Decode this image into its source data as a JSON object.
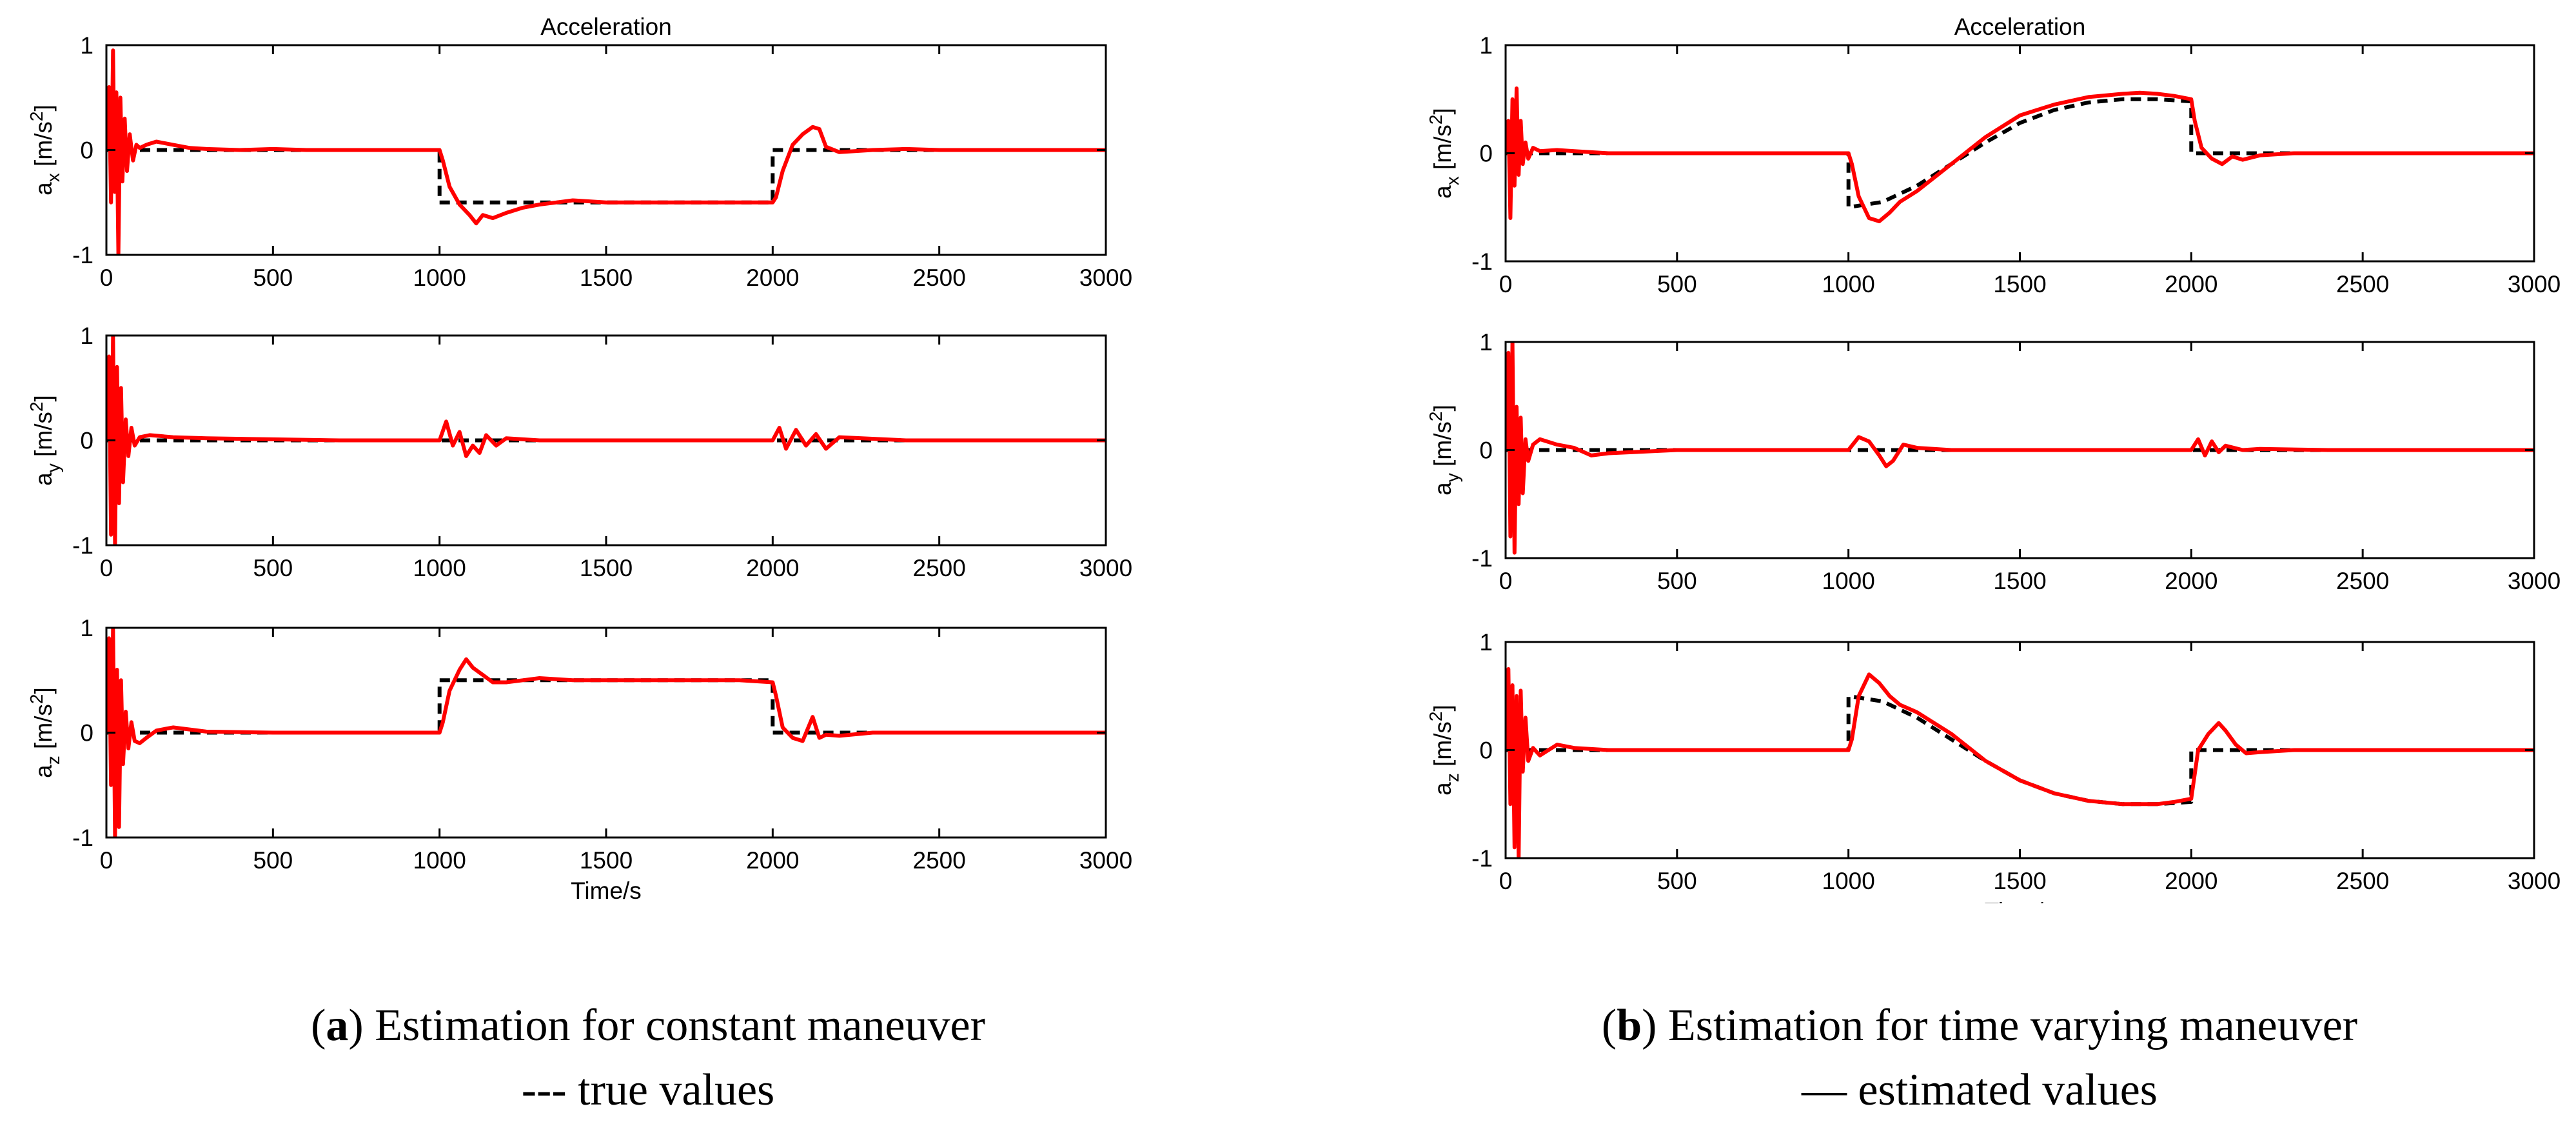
{
  "captions": {
    "a": {
      "label": "a",
      "text": "Estimation for constant maneuver"
    },
    "b": {
      "label": "b",
      "text": "Estimation for time varying maneuver"
    },
    "legend_true": "--- true values",
    "legend_estimated": "— estimated values"
  },
  "colors": {
    "true": "#000000",
    "estimated": "#ff0000",
    "axes": "#000000",
    "background": "#ffffff"
  },
  "chart_data": [
    {
      "panel": "a",
      "type": "line",
      "title": "Acceleration",
      "xlabel": "Time/s",
      "xlim": [
        0,
        3000
      ],
      "xticks": [
        0,
        500,
        1000,
        1500,
        2000,
        2500,
        3000
      ],
      "subplots": [
        {
          "ylabel_main": "a",
          "ylabel_sub": "x",
          "ylabel_unit": "[m/s",
          "ylabel_sup": "2",
          "ylabel_close": "]",
          "ylim": [
            -1,
            1
          ],
          "yticks": [
            -1,
            0,
            1
          ],
          "series": [
            {
              "name": "true values",
              "style": "dashed",
              "x": [
                0,
                1000,
                1000,
                2000,
                2000,
                3000
              ],
              "y": [
                0,
                0,
                -0.5,
                -0.5,
                0,
                0
              ]
            },
            {
              "name": "estimated values",
              "style": "solid",
              "x": [
                0,
                8,
                14,
                20,
                25,
                30,
                36,
                42,
                48,
                55,
                62,
                70,
                80,
                90,
                100,
                120,
                150,
                200,
                250,
                300,
                400,
                500,
                600,
                700,
                800,
                900,
                1000,
                1010,
                1030,
                1060,
                1090,
                1110,
                1130,
                1160,
                1200,
                1250,
                1300,
                1350,
                1400,
                1500,
                1600,
                1700,
                1800,
                1900,
                2000,
                2010,
                2030,
                2060,
                2090,
                2120,
                2140,
                2160,
                2200,
                2300,
                2400,
                2500,
                2600,
                2800,
                3000
              ],
              "y": [
                0,
                0.6,
                -0.5,
                0.95,
                -0.4,
                0.55,
                -1.0,
                0.5,
                -0.3,
                0.3,
                -0.2,
                0.15,
                -0.1,
                0.05,
                0.02,
                0.05,
                0.08,
                0.05,
                0.02,
                0.01,
                0,
                0.01,
                0,
                0,
                0,
                0,
                0,
                -0.1,
                -0.35,
                -0.52,
                -0.62,
                -0.7,
                -0.62,
                -0.65,
                -0.6,
                -0.55,
                -0.52,
                -0.5,
                -0.48,
                -0.5,
                -0.5,
                -0.5,
                -0.5,
                -0.5,
                -0.5,
                -0.45,
                -0.2,
                0.05,
                0.15,
                0.22,
                0.2,
                0.03,
                -0.02,
                0,
                0.01,
                0,
                0,
                0,
                0
              ]
            }
          ]
        },
        {
          "ylabel_main": "a",
          "ylabel_sub": "y",
          "ylabel_unit": "[m/s",
          "ylabel_sup": "2",
          "ylabel_close": "]",
          "ylim": [
            -1,
            1
          ],
          "yticks": [
            -1,
            0,
            1
          ],
          "series": [
            {
              "name": "true values",
              "style": "dashed",
              "x": [
                0,
                3000
              ],
              "y": [
                0,
                0
              ]
            },
            {
              "name": "estimated values",
              "style": "solid",
              "x": [
                0,
                8,
                14,
                20,
                26,
                32,
                38,
                44,
                50,
                58,
                66,
                75,
                85,
                100,
                130,
                200,
                300,
                500,
                700,
                900,
                1000,
                1020,
                1040,
                1060,
                1080,
                1100,
                1120,
                1140,
                1170,
                1200,
                1300,
                1500,
                1700,
                1900,
                2000,
                2020,
                2040,
                2070,
                2100,
                2130,
                2160,
                2200,
                2400,
                2600,
                3000
              ],
              "y": [
                0,
                0.8,
                -0.9,
                1.0,
                -1.0,
                0.7,
                -0.6,
                0.5,
                -0.4,
                0.2,
                -0.15,
                0.12,
                -0.05,
                0.03,
                0.05,
                0.03,
                0.02,
                0.01,
                0,
                0,
                0,
                0.18,
                -0.05,
                0.08,
                -0.15,
                -0.05,
                -0.12,
                0.05,
                -0.05,
                0.02,
                0,
                0,
                0,
                0,
                0,
                0.12,
                -0.08,
                0.1,
                -0.05,
                0.06,
                -0.08,
                0.03,
                0,
                0,
                0
              ]
            }
          ]
        },
        {
          "ylabel_main": "a",
          "ylabel_sub": "z",
          "ylabel_unit": "[m/s",
          "ylabel_sup": "2",
          "ylabel_close": "]",
          "ylim": [
            -1,
            1
          ],
          "yticks": [
            -1,
            0,
            1
          ],
          "series": [
            {
              "name": "true values",
              "style": "dashed",
              "x": [
                0,
                1000,
                1000,
                2000,
                2000,
                3000
              ],
              "y": [
                0,
                0,
                0.5,
                0.5,
                0,
                0
              ]
            },
            {
              "name": "estimated values",
              "style": "solid",
              "x": [
                0,
                8,
                14,
                20,
                26,
                32,
                38,
                44,
                50,
                58,
                66,
                75,
                85,
                100,
                120,
                150,
                200,
                250,
                300,
                500,
                700,
                900,
                1000,
                1010,
                1030,
                1060,
                1080,
                1100,
                1130,
                1160,
                1200,
                1250,
                1300,
                1400,
                1500,
                1700,
                1900,
                2000,
                2010,
                2030,
                2060,
                2090,
                2120,
                2140,
                2160,
                2200,
                2300,
                2500,
                3000
              ],
              "y": [
                0,
                0.9,
                -0.5,
                1.0,
                -1.0,
                0.6,
                -0.9,
                0.5,
                -0.3,
                0.2,
                -0.15,
                0.1,
                -0.08,
                -0.1,
                -0.05,
                0.02,
                0.05,
                0.03,
                0.01,
                0,
                0,
                0,
                0,
                0.1,
                0.4,
                0.6,
                0.7,
                0.62,
                0.55,
                0.48,
                0.48,
                0.5,
                0.52,
                0.5,
                0.5,
                0.5,
                0.5,
                0.48,
                0.35,
                0.05,
                -0.05,
                -0.08,
                0.15,
                -0.05,
                -0.02,
                -0.03,
                0,
                0,
                0
              ]
            }
          ]
        }
      ]
    },
    {
      "panel": "b",
      "type": "line",
      "title": "Acceleration",
      "xlabel": "Time/s",
      "xlim": [
        0,
        3000
      ],
      "xticks": [
        0,
        500,
        1000,
        1500,
        2000,
        2500,
        3000
      ],
      "subplots": [
        {
          "ylabel_main": "a",
          "ylabel_sub": "x",
          "ylabel_unit": "[m/s",
          "ylabel_sup": "2",
          "ylabel_close": "]",
          "ylim": [
            -1,
            1
          ],
          "yticks": [
            -1,
            0,
            1
          ],
          "series": [
            {
              "name": "true values",
              "style": "dashed",
              "x": [
                0,
                1000,
                1000,
                1100,
                1200,
                1300,
                1400,
                1500,
                1600,
                1700,
                1800,
                1850,
                1900,
                2000,
                2000,
                3000
              ],
              "y": [
                0,
                0,
                -0.5,
                -0.45,
                -0.3,
                -0.1,
                0.1,
                0.28,
                0.4,
                0.47,
                0.5,
                0.5,
                0.5,
                0.48,
                0,
                0
              ]
            },
            {
              "name": "estimated values",
              "style": "solid",
              "x": [
                0,
                8,
                14,
                20,
                26,
                32,
                38,
                44,
                50,
                58,
                66,
                80,
                100,
                150,
                200,
                300,
                500,
                700,
                900,
                1000,
                1010,
                1030,
                1060,
                1090,
                1120,
                1150,
                1200,
                1300,
                1400,
                1500,
                1600,
                1700,
                1800,
                1850,
                1900,
                1950,
                2000,
                2010,
                2030,
                2060,
                2090,
                2120,
                2150,
                2200,
                2300,
                2500,
                3000
              ],
              "y": [
                0,
                0.3,
                -0.6,
                0.5,
                -0.3,
                0.6,
                -0.2,
                0.3,
                -0.1,
                0.1,
                -0.05,
                0.05,
                0.02,
                0.03,
                0.02,
                0,
                0,
                0,
                0,
                0,
                -0.1,
                -0.4,
                -0.6,
                -0.63,
                -0.55,
                -0.45,
                -0.35,
                -0.1,
                0.15,
                0.35,
                0.45,
                0.52,
                0.55,
                0.56,
                0.55,
                0.53,
                0.5,
                0.3,
                0.05,
                -0.05,
                -0.1,
                -0.03,
                -0.06,
                -0.02,
                0,
                0,
                0
              ]
            }
          ]
        },
        {
          "ylabel_main": "a",
          "ylabel_sub": "y",
          "ylabel_unit": "[m/s",
          "ylabel_sup": "2",
          "ylabel_close": "]",
          "ylim": [
            -1,
            1
          ],
          "yticks": [
            -1,
            0,
            1
          ],
          "series": [
            {
              "name": "true values",
              "style": "dashed",
              "x": [
                0,
                3000
              ],
              "y": [
                0,
                0
              ]
            },
            {
              "name": "estimated values",
              "style": "solid",
              "x": [
                0,
                8,
                14,
                20,
                26,
                32,
                38,
                44,
                50,
                58,
                66,
                80,
                100,
                150,
                200,
                250,
                300,
                500,
                700,
                900,
                1000,
                1030,
                1060,
                1090,
                1110,
                1130,
                1160,
                1200,
                1300,
                1500,
                1700,
                1900,
                2000,
                2020,
                2040,
                2060,
                2080,
                2100,
                2150,
                2200,
                2400,
                3000
              ],
              "y": [
                0,
                0.9,
                -0.8,
                1.0,
                -0.95,
                0.4,
                -0.5,
                0.3,
                -0.4,
                0.1,
                -0.1,
                0.05,
                0.1,
                0.05,
                0.02,
                -0.05,
                -0.03,
                0,
                0,
                0,
                0,
                0.12,
                0.08,
                -0.05,
                -0.15,
                -0.1,
                0.05,
                0.02,
                0,
                0,
                0,
                0,
                0,
                0.1,
                -0.05,
                0.08,
                -0.02,
                0.04,
                0,
                0.01,
                0,
                0
              ]
            }
          ]
        },
        {
          "ylabel_main": "a",
          "ylabel_sub": "z",
          "ylabel_unit": "[m/s",
          "ylabel_sup": "2",
          "ylabel_close": "]",
          "ylim": [
            -1,
            1
          ],
          "yticks": [
            -1,
            0,
            1
          ],
          "series": [
            {
              "name": "true values",
              "style": "dashed",
              "x": [
                0,
                1000,
                1000,
                1100,
                1200,
                1300,
                1400,
                1500,
                1600,
                1700,
                1800,
                1850,
                1900,
                2000,
                2000,
                3000
              ],
              "y": [
                0,
                0,
                0.5,
                0.45,
                0.3,
                0.1,
                -0.1,
                -0.28,
                -0.4,
                -0.47,
                -0.5,
                -0.5,
                -0.5,
                -0.48,
                0,
                0
              ]
            },
            {
              "name": "estimated values",
              "style": "solid",
              "x": [
                0,
                8,
                14,
                20,
                26,
                32,
                38,
                44,
                50,
                58,
                66,
                80,
                100,
                150,
                200,
                300,
                500,
                700,
                900,
                1000,
                1010,
                1030,
                1060,
                1090,
                1120,
                1150,
                1200,
                1300,
                1400,
                1500,
                1600,
                1700,
                1800,
                1850,
                1900,
                1950,
                2000,
                2020,
                2050,
                2080,
                2100,
                2130,
                2160,
                2200,
                2300,
                2500,
                3000
              ],
              "y": [
                0,
                0.75,
                -0.5,
                0.6,
                -0.9,
                0.5,
                -1.0,
                0.55,
                -0.2,
                0.3,
                -0.1,
                0.02,
                -0.05,
                0.05,
                0.02,
                0,
                0,
                0,
                0,
                0,
                0.1,
                0.5,
                0.7,
                0.62,
                0.5,
                0.42,
                0.35,
                0.15,
                -0.1,
                -0.28,
                -0.4,
                -0.47,
                -0.5,
                -0.5,
                -0.5,
                -0.48,
                -0.45,
                0.0,
                0.15,
                0.25,
                0.18,
                0.05,
                -0.03,
                -0.02,
                0,
                0,
                0
              ]
            }
          ]
        }
      ]
    }
  ]
}
